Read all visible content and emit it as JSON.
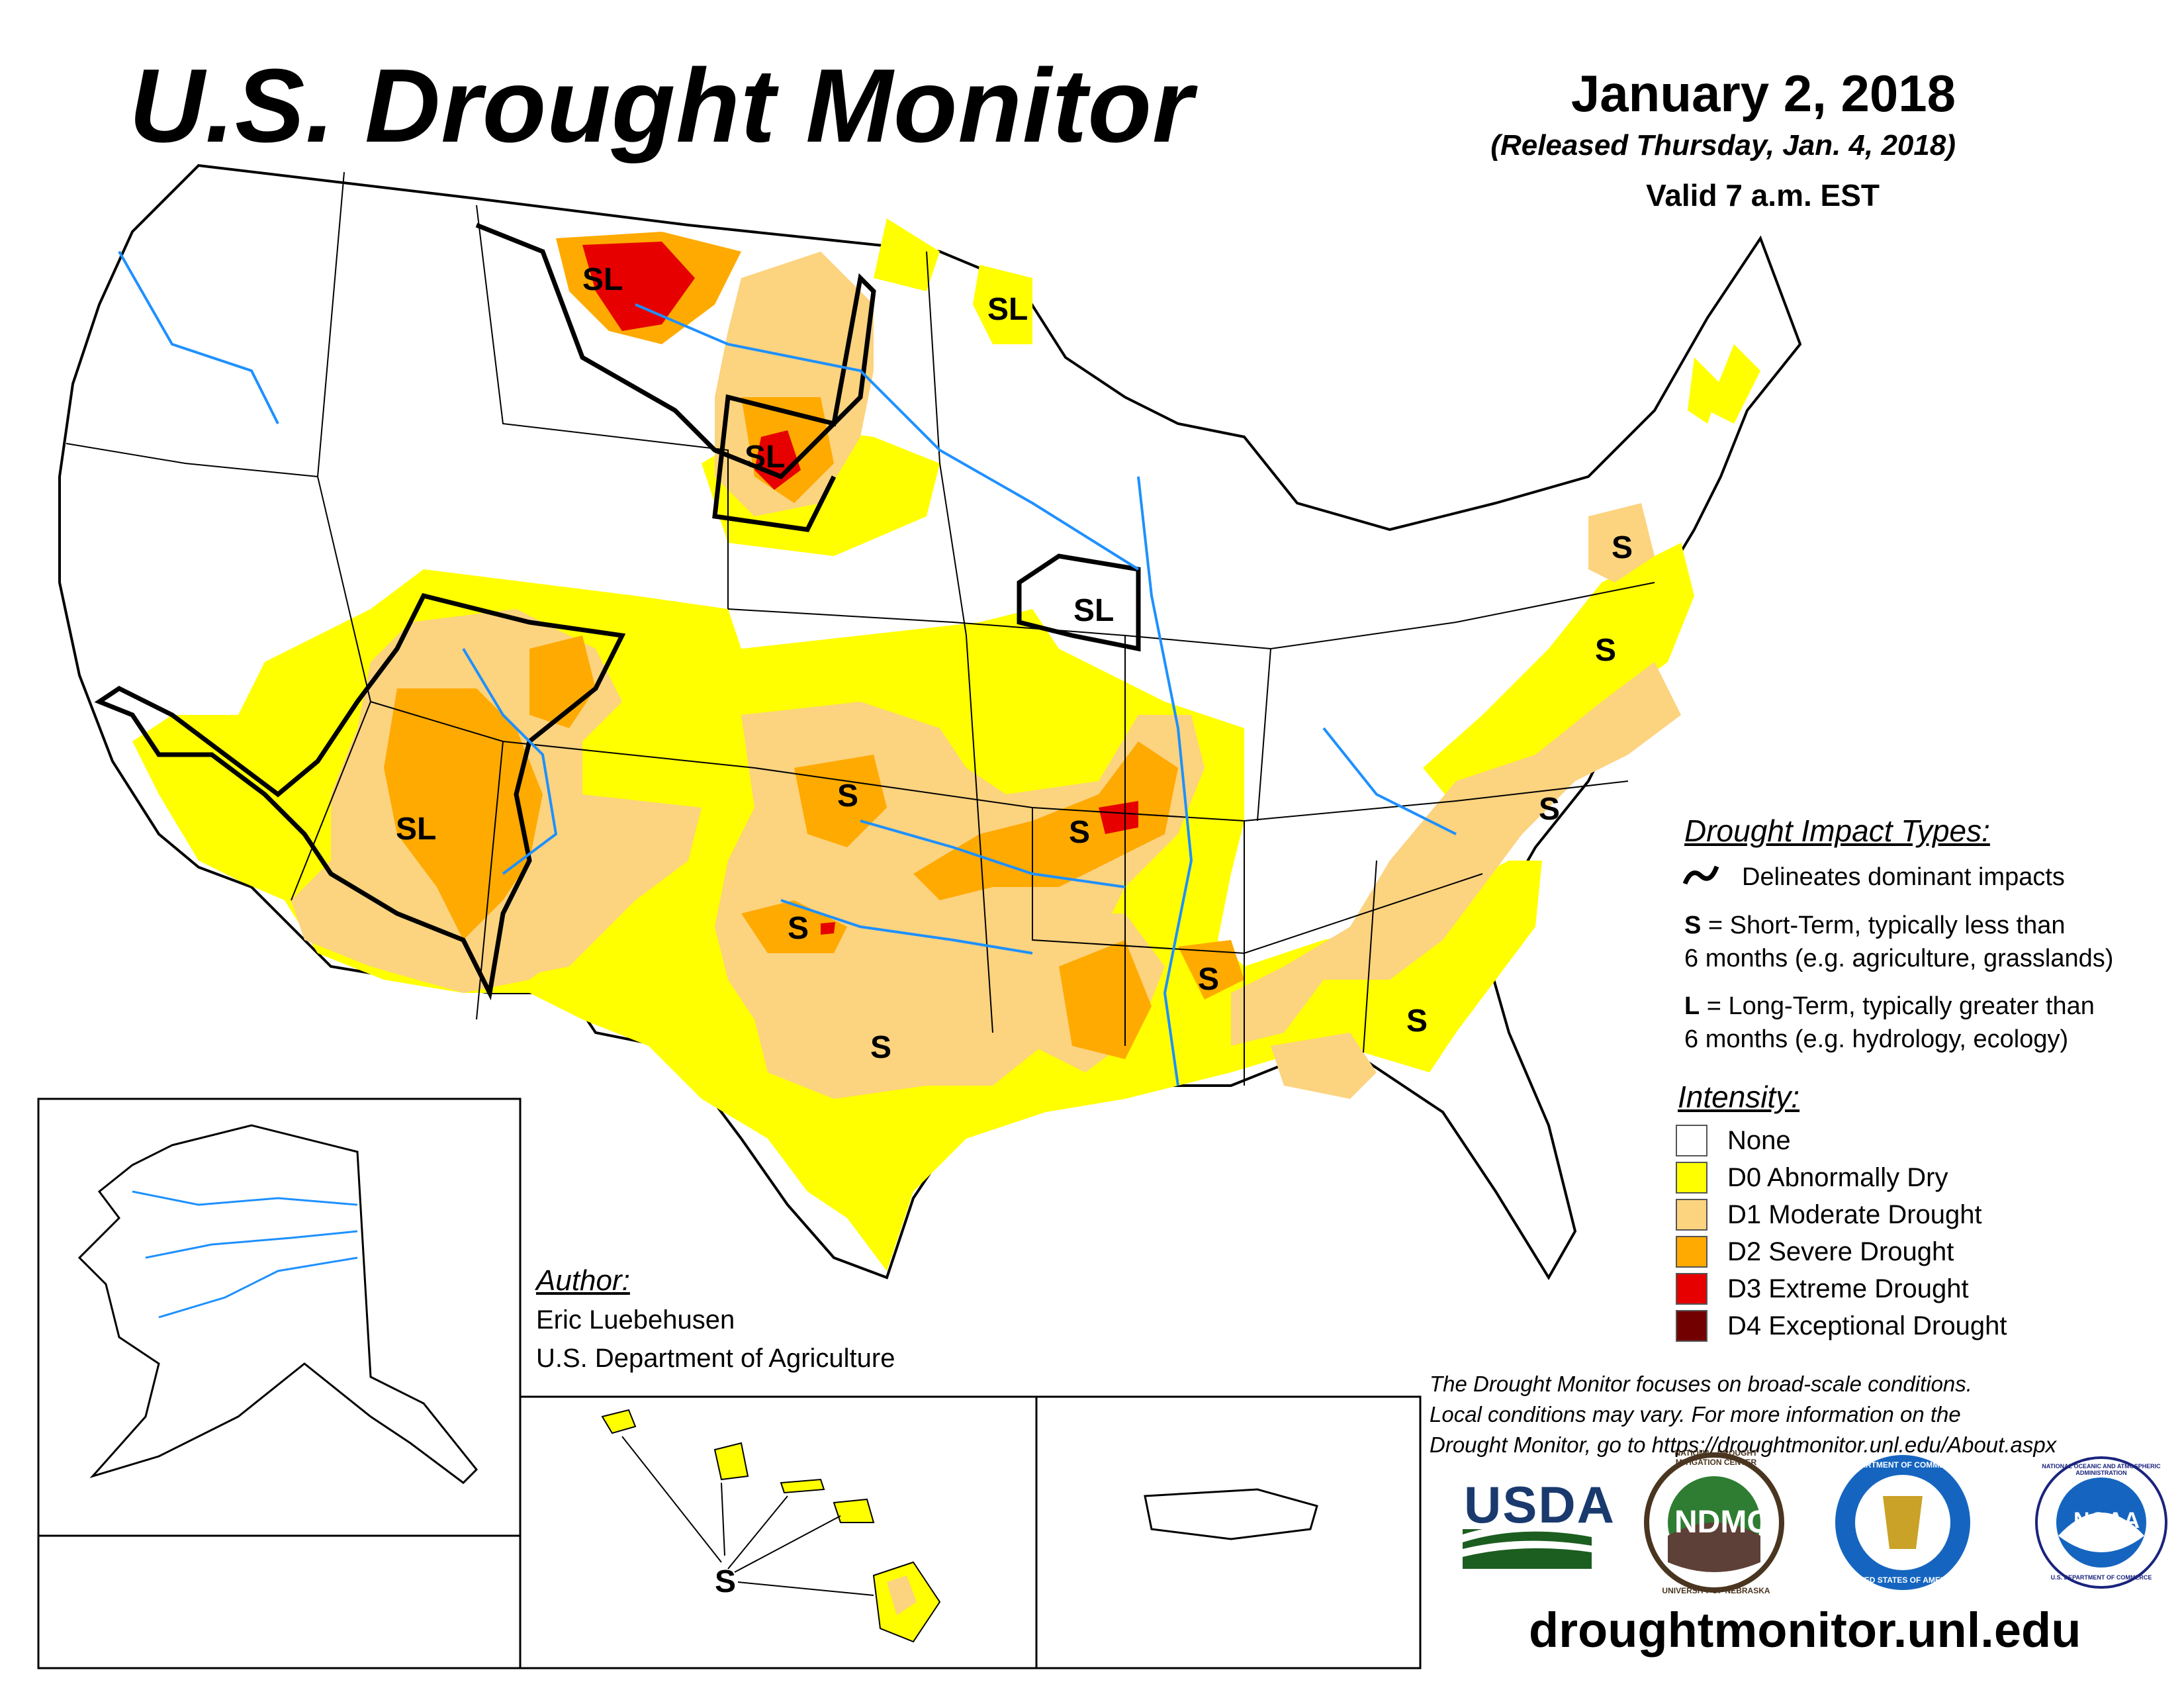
{
  "header": {
    "title": "U.S. Drought Monitor",
    "date": "January 2, 2018",
    "released": "(Released Thursday, Jan. 4, 2018)",
    "valid": "Valid 7 a.m. EST"
  },
  "impact_types": {
    "heading": "Drought Impact Types:",
    "delineates": "Delineates dominant impacts",
    "s_key": "S",
    "s_text_1": " = Short-Term, typically less than",
    "s_text_2": "6 months (e.g. agriculture, grasslands)",
    "l_key": "L",
    "l_text_1": " = Long-Term, typically greater than",
    "l_text_2": "6 months (e.g. hydrology, ecology)"
  },
  "intensity": {
    "heading": "Intensity:",
    "items": [
      {
        "label": "None",
        "color": "#ffffff"
      },
      {
        "label": "D0 Abnormally Dry",
        "color": "#ffff00"
      },
      {
        "label": "D1 Moderate Drought",
        "color": "#fcd37f"
      },
      {
        "label": "D2 Severe Drought",
        "color": "#ffaa00"
      },
      {
        "label": "D3 Extreme Drought",
        "color": "#e60000"
      },
      {
        "label": "D4 Exceptional Drought",
        "color": "#730000"
      }
    ]
  },
  "author": {
    "heading": "Author:",
    "name": "Eric Luebehusen",
    "org": "U.S. Department of Agriculture"
  },
  "disclaimer": {
    "line1": "The Drought Monitor focuses on broad-scale conditions.",
    "line2": "Local conditions may vary. For more information on the",
    "line3": "Drought Monitor, go to https://droughtmonitor.unl.edu/About.aspx"
  },
  "map_labels": {
    "sl_montana": "SL",
    "sl_minnesota": "SL",
    "sl_dakota": "SL",
    "sl_iowa": "SL",
    "sl_arizona": "SL",
    "s_kansas": "S",
    "s_missouri": "S",
    "s_oklahoma": "S",
    "s_texas": "S",
    "s_mississippi": "S",
    "s_georgia": "S",
    "s_carolina": "S",
    "s_pennsylvania": "S",
    "s_virginia": "S",
    "s_hawaii": "S"
  },
  "logos": {
    "usda": "USDA",
    "ndmc": "NDMC",
    "ndmc_ring_top": "NATIONAL DROUGHT MITIGATION CENTER",
    "ndmc_ring_bottom": "UNIVERSITY OF NEBRASKA",
    "doc_ring_top": "DEPARTMENT OF COMMERCE",
    "doc_ring_bottom": "UNITED STATES OF AMERICA",
    "noaa": "NOAA",
    "noaa_ring_top": "NATIONAL OCEANIC AND ATMOSPHERIC ADMINISTRATION",
    "noaa_ring_bottom": "U.S. DEPARTMENT OF COMMERCE"
  },
  "footer_url": "droughtmonitor.unl.edu"
}
